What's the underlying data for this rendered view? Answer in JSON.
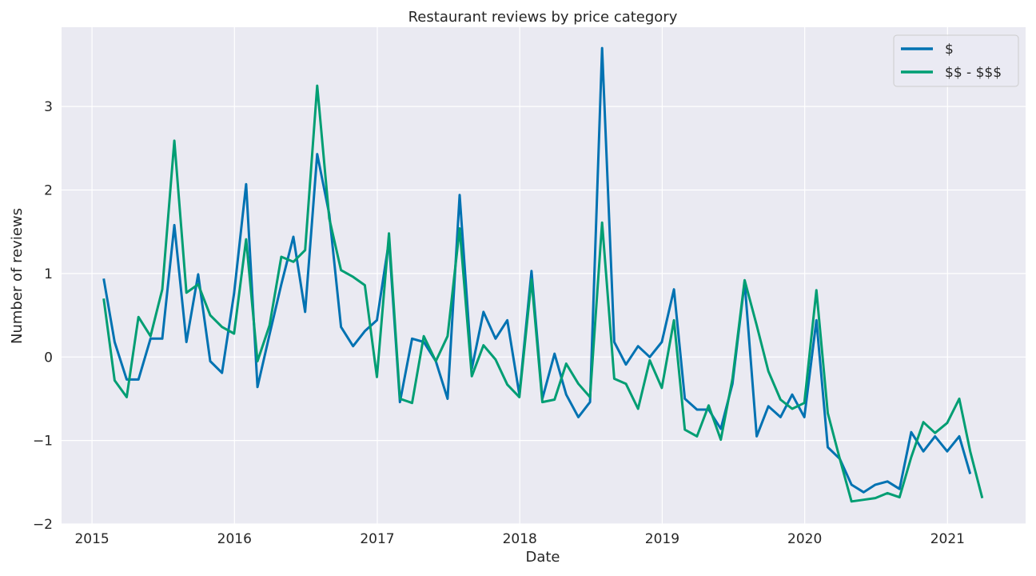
{
  "chart_data": {
    "type": "line",
    "title": "Restaurant reviews by price category",
    "xlabel": "Date",
    "ylabel": "Number of reviews",
    "xlim": [
      "2014-10-15",
      "2021-07-20"
    ],
    "ylim": [
      -2,
      3.95
    ],
    "xticks": [
      {
        "date": "2015-01-01",
        "label": "2015"
      },
      {
        "date": "2016-01-01",
        "label": "2016"
      },
      {
        "date": "2017-01-01",
        "label": "2017"
      },
      {
        "date": "2018-01-01",
        "label": "2018"
      },
      {
        "date": "2019-01-01",
        "label": "2019"
      },
      {
        "date": "2020-01-01",
        "label": "2020"
      },
      {
        "date": "2021-01-01",
        "label": "2021"
      }
    ],
    "yticks": [
      {
        "value": -2,
        "label": "−2"
      },
      {
        "value": -1,
        "label": "−1"
      },
      {
        "value": 0,
        "label": "0"
      },
      {
        "value": 1,
        "label": "1"
      },
      {
        "value": 2,
        "label": "2"
      },
      {
        "value": 3,
        "label": "3"
      }
    ],
    "grid": true,
    "legend_position": "top-right",
    "series": [
      {
        "name": "$",
        "color": "#0072b2",
        "x": [
          "2015-01-31",
          "2015-02-28",
          "2015-03-31",
          "2015-04-30",
          "2015-05-31",
          "2015-06-30",
          "2015-07-31",
          "2015-08-31",
          "2015-09-30",
          "2015-10-31",
          "2015-11-30",
          "2015-12-31",
          "2016-01-31",
          "2016-02-29",
          "2016-03-31",
          "2016-04-30",
          "2016-05-31",
          "2016-06-30",
          "2016-07-31",
          "2016-08-31",
          "2016-09-30",
          "2016-10-31",
          "2016-11-30",
          "2016-12-31",
          "2017-01-31",
          "2017-02-28",
          "2017-03-31",
          "2017-04-30",
          "2017-05-31",
          "2017-06-30",
          "2017-07-31",
          "2017-08-31",
          "2017-09-30",
          "2017-10-31",
          "2017-11-30",
          "2017-12-31",
          "2018-01-31",
          "2018-02-28",
          "2018-03-31",
          "2018-04-30",
          "2018-05-31",
          "2018-06-30",
          "2018-07-31",
          "2018-08-31",
          "2018-09-30",
          "2018-10-31",
          "2018-11-30",
          "2018-12-31",
          "2019-01-31",
          "2019-02-28",
          "2019-03-31",
          "2019-04-30",
          "2019-05-31",
          "2019-06-30",
          "2019-07-31",
          "2019-08-31",
          "2019-09-30",
          "2019-10-31",
          "2019-11-30",
          "2019-12-31",
          "2020-01-31",
          "2020-02-29",
          "2020-03-31",
          "2020-04-30",
          "2020-05-31",
          "2020-06-30",
          "2020-07-31",
          "2020-08-31",
          "2020-09-30",
          "2020-10-31",
          "2020-11-30",
          "2020-12-31",
          "2021-01-31",
          "2021-02-28"
        ],
        "values": [
          0.94,
          0.18,
          -0.27,
          -0.27,
          0.22,
          0.22,
          1.58,
          0.18,
          0.99,
          -0.05,
          -0.19,
          0.76,
          2.07,
          -0.36,
          0.27,
          0.87,
          1.44,
          0.54,
          2.43,
          1.71,
          0.36,
          0.13,
          0.31,
          0.44,
          1.39,
          -0.54,
          0.22,
          0.18,
          -0.05,
          -0.5,
          1.94,
          -0.14,
          0.54,
          0.22,
          0.44,
          -0.45,
          1.03,
          -0.5,
          0.04,
          -0.45,
          -0.72,
          -0.54,
          3.7,
          0.18,
          -0.09,
          0.13,
          0.0,
          0.18,
          0.81,
          -0.5,
          -0.63,
          -0.63,
          -0.86,
          -0.32,
          0.9,
          -0.95,
          -0.59,
          -0.72,
          -0.45,
          -0.72,
          0.44,
          -1.08,
          -1.22,
          -1.53,
          -1.62,
          -1.53,
          -1.49,
          -1.58,
          -0.9,
          -1.13,
          -0.95,
          -1.13,
          -0.95,
          -1.4
        ]
      },
      {
        "name": "$$ - $$$",
        "color": "#009e73",
        "x": [
          "2015-01-31",
          "2015-02-28",
          "2015-03-31",
          "2015-04-30",
          "2015-05-31",
          "2015-06-30",
          "2015-07-31",
          "2015-08-31",
          "2015-09-30",
          "2015-10-31",
          "2015-11-30",
          "2015-12-31",
          "2016-01-31",
          "2016-02-29",
          "2016-03-31",
          "2016-04-30",
          "2016-05-31",
          "2016-06-30",
          "2016-07-31",
          "2016-08-31",
          "2016-09-30",
          "2016-10-31",
          "2016-11-30",
          "2016-12-31",
          "2017-01-31",
          "2017-02-28",
          "2017-03-31",
          "2017-04-30",
          "2017-05-31",
          "2017-06-30",
          "2017-07-31",
          "2017-08-31",
          "2017-09-30",
          "2017-10-31",
          "2017-11-30",
          "2017-12-31",
          "2018-01-31",
          "2018-02-28",
          "2018-03-31",
          "2018-04-30",
          "2018-05-31",
          "2018-06-30",
          "2018-07-31",
          "2018-08-31",
          "2018-09-30",
          "2018-10-31",
          "2018-11-30",
          "2018-12-31",
          "2019-01-31",
          "2019-02-28",
          "2019-03-31",
          "2019-04-30",
          "2019-05-31",
          "2019-06-30",
          "2019-07-31",
          "2019-08-31",
          "2019-09-30",
          "2019-10-31",
          "2019-11-30",
          "2019-12-31",
          "2020-01-31",
          "2020-02-29",
          "2020-03-31",
          "2020-04-30",
          "2020-05-31",
          "2020-06-30",
          "2020-07-31",
          "2020-08-31",
          "2020-09-30",
          "2020-10-31",
          "2020-11-30",
          "2020-12-31",
          "2021-01-31",
          "2021-02-28",
          "2021-03-31"
        ],
        "values": [
          0.7,
          -0.28,
          -0.48,
          0.48,
          0.25,
          0.81,
          2.59,
          0.77,
          0.87,
          0.5,
          0.36,
          0.28,
          1.41,
          -0.05,
          0.38,
          1.2,
          1.14,
          1.28,
          3.25,
          1.66,
          1.04,
          0.96,
          0.86,
          -0.24,
          1.48,
          -0.5,
          -0.55,
          0.25,
          -0.05,
          0.25,
          1.54,
          -0.23,
          0.14,
          -0.03,
          -0.33,
          -0.48,
          0.93,
          -0.54,
          -0.51,
          -0.08,
          -0.32,
          -0.48,
          1.61,
          -0.26,
          -0.32,
          -0.62,
          -0.04,
          -0.37,
          0.44,
          -0.87,
          -0.95,
          -0.58,
          -0.99,
          -0.26,
          0.92,
          0.38,
          -0.17,
          -0.51,
          -0.62,
          -0.55,
          0.8,
          -0.67,
          -1.22,
          -1.73,
          -1.71,
          -1.69,
          -1.63,
          -1.68,
          -1.2,
          -0.78,
          -0.91,
          -0.79,
          -0.5,
          -1.13,
          -1.69
        ]
      }
    ]
  }
}
